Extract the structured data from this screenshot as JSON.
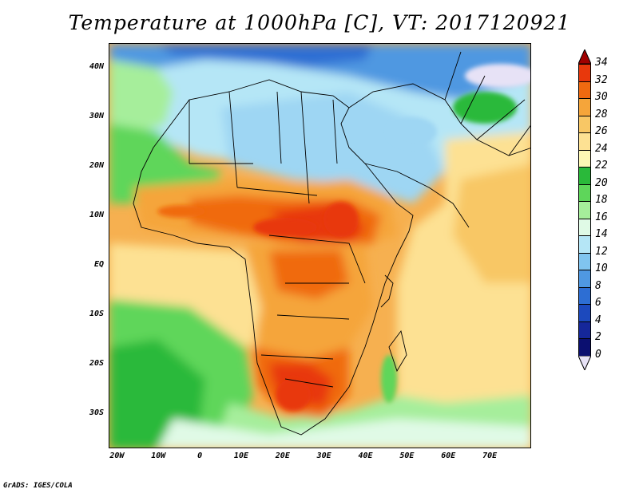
{
  "title": "Temperature at 1000hPa [C], VT: 2017120921",
  "credit": "GrADS: IGES/COLA",
  "map": {
    "lat_labels": [
      "40N",
      "30N",
      "20N",
      "10N",
      "EQ",
      "10S",
      "20S",
      "30S"
    ],
    "lon_labels": [
      "20W",
      "10W",
      "0",
      "10E",
      "20E",
      "30E",
      "40E",
      "50E",
      "60E",
      "70E"
    ],
    "lat_range": [
      -37,
      45
    ],
    "lon_range": [
      -22,
      80
    ]
  },
  "colorbar": {
    "labels": [
      "34",
      "32",
      "30",
      "28",
      "26",
      "24",
      "22",
      "20",
      "18",
      "16",
      "14",
      "12",
      "10",
      "8",
      "6",
      "4",
      "2",
      "0"
    ],
    "colors": [
      "#a00000",
      "#e8380c",
      "#f06a10",
      "#f5a53a",
      "#f8c765",
      "#fde193",
      "#fdf7b4",
      "#2ab93a",
      "#5ed65a",
      "#a6ee9b",
      "#e0fae6",
      "#b5e6f6",
      "#80c4ef",
      "#4f98e1",
      "#2d6ed3",
      "#1c49bd",
      "#15279a",
      "#0b0f70",
      "#e7e2f6"
    ]
  }
}
